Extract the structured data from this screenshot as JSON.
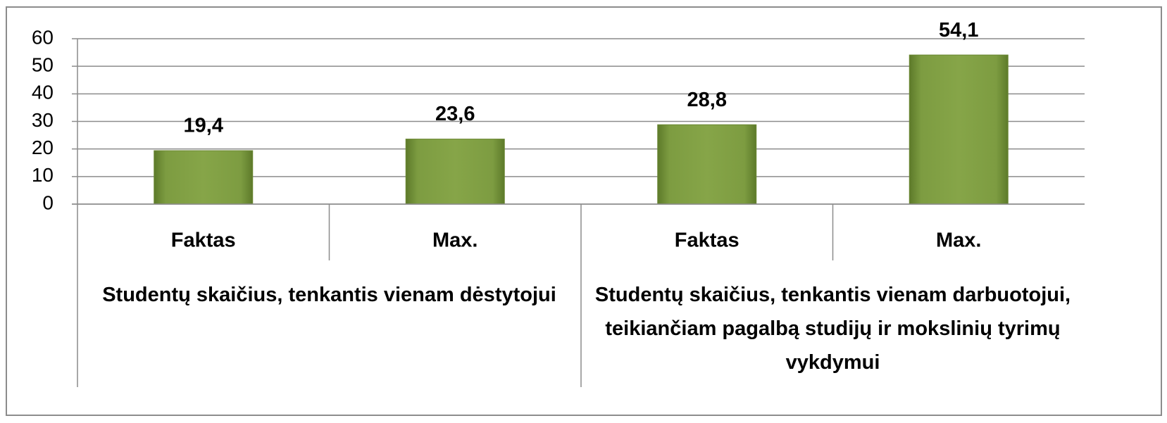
{
  "chart_data": {
    "type": "bar",
    "color": "#77933c",
    "groups": [
      {
        "name": "Studentų skaičius, tenkantis vienam dėstytojui",
        "categories": [
          "Faktas",
          "Max."
        ],
        "values": [
          19.4,
          23.6
        ],
        "value_labels": [
          "19,4",
          "23,6"
        ]
      },
      {
        "name": "Studentų skaičius, tenkantis vienam darbuotojui, teikiančiam pagalbą studijų ir mokslinių tyrimų vykdymui",
        "categories": [
          "Faktas",
          "Max."
        ],
        "values": [
          28.8,
          54.1
        ],
        "value_labels": [
          "28,8",
          "54,1"
        ]
      }
    ],
    "ylim": [
      0,
      60
    ],
    "yticks": [
      0,
      10,
      20,
      30,
      40,
      50,
      60
    ],
    "grid": true
  }
}
